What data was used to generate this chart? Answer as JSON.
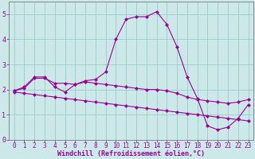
{
  "xlabel": "Windchill (Refroidissement éolien,°C)",
  "bg_color": "#cce8e8",
  "grid_color": "#99cccc",
  "line_color": "#990099",
  "xlim": [
    -0.5,
    23.5
  ],
  "ylim": [
    0,
    5.5
  ],
  "xticks": [
    0,
    1,
    2,
    3,
    4,
    5,
    6,
    7,
    8,
    9,
    10,
    11,
    12,
    13,
    14,
    15,
    16,
    17,
    18,
    19,
    20,
    21,
    22,
    23
  ],
  "yticks": [
    0,
    1,
    2,
    3,
    4,
    5
  ],
  "line1_x": [
    0,
    1,
    2,
    3,
    4,
    5,
    6,
    7,
    8,
    9,
    10,
    11,
    12,
    13,
    14,
    15,
    16,
    17,
    18,
    19,
    20,
    21,
    22,
    23
  ],
  "line1_y": [
    1.95,
    2.1,
    2.5,
    2.5,
    2.1,
    1.9,
    2.2,
    2.35,
    2.4,
    2.7,
    4.0,
    4.8,
    4.9,
    4.9,
    5.1,
    4.6,
    3.7,
    2.5,
    1.65,
    0.55,
    0.4,
    0.5,
    0.85,
    1.4
  ],
  "line2_x": [
    0,
    1,
    2,
    3,
    4,
    5,
    6,
    7,
    8,
    9,
    10,
    11,
    12,
    13,
    14,
    15,
    16,
    17,
    18,
    19,
    20,
    21,
    22,
    23
  ],
  "line2_y": [
    1.95,
    2.05,
    2.45,
    2.45,
    2.25,
    2.25,
    2.2,
    2.3,
    2.25,
    2.2,
    2.15,
    2.1,
    2.05,
    2.0,
    2.0,
    1.95,
    1.85,
    1.7,
    1.6,
    1.55,
    1.5,
    1.45,
    1.5,
    1.6
  ],
  "line3_x": [
    0,
    1,
    2,
    3,
    4,
    5,
    6,
    7,
    8,
    9,
    10,
    11,
    12,
    13,
    14,
    15,
    16,
    17,
    18,
    19,
    20,
    21,
    22,
    23
  ],
  "line3_y": [
    1.9,
    1.85,
    1.8,
    1.75,
    1.7,
    1.65,
    1.6,
    1.55,
    1.5,
    1.45,
    1.4,
    1.35,
    1.3,
    1.25,
    1.2,
    1.15,
    1.1,
    1.05,
    1.0,
    0.95,
    0.9,
    0.85,
    0.8,
    0.75
  ],
  "tick_fontsize": 5.5,
  "xlabel_fontsize": 6.0,
  "marker_size": 2.5,
  "linewidth": 0.8
}
